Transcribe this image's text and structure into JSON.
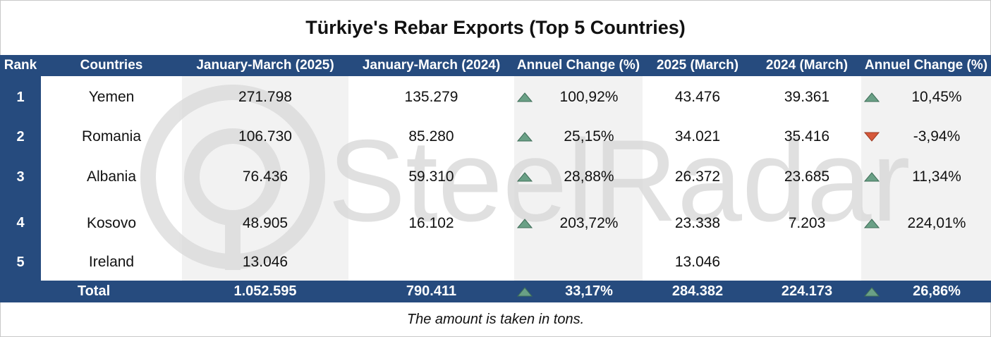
{
  "title": "Türkiye's Rebar Exports (Top 5 Countries)",
  "colors": {
    "header_bg": "#264b7e",
    "band_bg": "#f2f2f2",
    "up": "#6aa086",
    "down": "#d6583a",
    "watermark": "#d9d9d9"
  },
  "watermark_text": "SteelRadar",
  "headers": [
    "Rank",
    "Countries",
    "January-March (2025)",
    "January-March (2024)",
    "Annuel Change (%)",
    "2025 (March)",
    "2024 (March)",
    "Annuel Change (%)"
  ],
  "chart_data": {
    "type": "table",
    "title": "Türkiye's Rebar Exports (Top 5 Countries)",
    "columns": [
      "Rank",
      "Countries",
      "January-March (2025)",
      "January-March (2024)",
      "Annuel Change (%)",
      "2025 (March)",
      "2024 (March)",
      "Annuel Change (%)"
    ],
    "rows": [
      {
        "rank": "1",
        "country": "Yemen",
        "jm2025": "271.798",
        "jm2024": "135.279",
        "chg1": "100,92%",
        "chg1_dir": "up",
        "m2025": "43.476",
        "m2024": "39.361",
        "chg2": "10,45%",
        "chg2_dir": "up"
      },
      {
        "rank": "2",
        "country": "Romania",
        "jm2025": "106.730",
        "jm2024": "85.280",
        "chg1": "25,15%",
        "chg1_dir": "up",
        "m2025": "34.021",
        "m2024": "35.416",
        "chg2": "-3,94%",
        "chg2_dir": "down"
      },
      {
        "rank": "3",
        "country": "Albania",
        "jm2025": "76.436",
        "jm2024": "59.310",
        "chg1": "28,88%",
        "chg1_dir": "up",
        "m2025": "26.372",
        "m2024": "23.685",
        "chg2": "11,34%",
        "chg2_dir": "up"
      },
      {
        "rank": "4",
        "country": "Kosovo",
        "jm2025": "48.905",
        "jm2024": "16.102",
        "chg1": "203,72%",
        "chg1_dir": "up",
        "m2025": "23.338",
        "m2024": "7.203",
        "chg2": "224,01%",
        "chg2_dir": "up"
      },
      {
        "rank": "5",
        "country": "Ireland",
        "jm2025": "13.046",
        "jm2024": "",
        "chg1": "",
        "chg1_dir": "",
        "m2025": "13.046",
        "m2024": "",
        "chg2": "",
        "chg2_dir": ""
      }
    ],
    "total": {
      "label": "Total",
      "jm2025": "1.052.595",
      "jm2024": "790.411",
      "chg1": "33,17%",
      "chg1_dir": "up",
      "m2025": "284.382",
      "m2024": "224.173",
      "chg2": "26,86%",
      "chg2_dir": "up"
    }
  },
  "note": "The amount is taken in tons."
}
